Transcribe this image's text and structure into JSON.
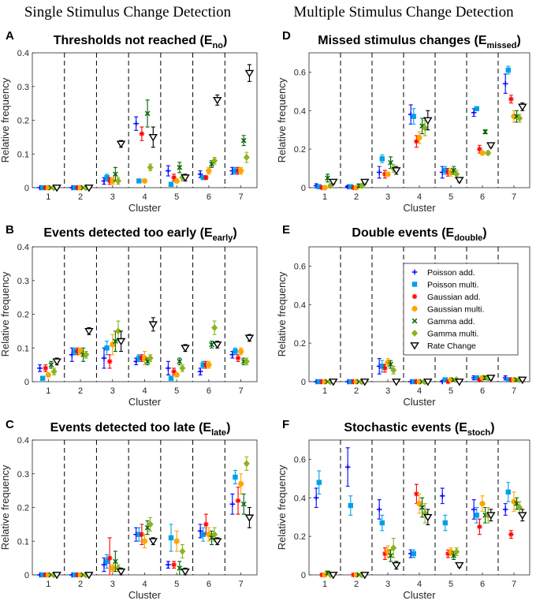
{
  "column_titles": [
    "Single Stimulus Change Detection",
    "Multiple Stimulus Change Detection"
  ],
  "legend": [
    {
      "name": "Poisson add.",
      "color": "#0000ff",
      "marker": "plus"
    },
    {
      "name": "Poisson multi.",
      "color": "#00a0e9",
      "marker": "square"
    },
    {
      "name": "Gaussian add.",
      "color": "#ff0000",
      "marker": "star"
    },
    {
      "name": "Gaussian multi.",
      "color": "#ffa500",
      "marker": "circle"
    },
    {
      "name": "Gamma add.",
      "color": "#006400",
      "marker": "cross"
    },
    {
      "name": "Gamma multi.",
      "color": "#8cb41e",
      "marker": "diamond"
    },
    {
      "name": "Rate Change",
      "color": "#000000",
      "marker": "triangle"
    }
  ],
  "chart_data": [
    {
      "id": "A",
      "type": "scatter",
      "letter": "A",
      "title": "Thresholds not reached (E",
      "title_sub": "no",
      "title_end": ")",
      "xlabel": "Cluster",
      "ylabel": "Relative frequency",
      "categories": [
        "1",
        "2",
        "3",
        "4",
        "5",
        "6",
        "7"
      ],
      "ylim": [
        0,
        0.4
      ],
      "yticks": [
        0,
        0.1,
        0.2,
        0.3,
        0.4
      ],
      "ytick_labels": [
        "0",
        "0.1",
        "0.2",
        "0.3",
        "0.4"
      ],
      "series": [
        {
          "name": "Poisson add.",
          "values": [
            0,
            0,
            0.02,
            0.19,
            0.05,
            0.04,
            0.05
          ],
          "err": [
            0.003,
            0.003,
            0.01,
            0.02,
            0.015,
            0.01,
            0.01
          ]
        },
        {
          "name": "Poisson multi.",
          "values": [
            0,
            0,
            0.03,
            0.02,
            0.01,
            0.03,
            0.05
          ],
          "err": [
            0.003,
            0.003,
            0.01,
            0.005,
            0.005,
            0.005,
            0.01
          ]
        },
        {
          "name": "Gaussian add.",
          "values": [
            0,
            0,
            0.02,
            0.16,
            0.03,
            0.03,
            0.05
          ],
          "err": [
            0.003,
            0.003,
            0.01,
            0.02,
            0.01,
            0.005,
            0.01
          ]
        },
        {
          "name": "Gaussian multi.",
          "values": [
            0,
            0,
            0.02,
            0.02,
            0.02,
            0.05,
            0.05
          ],
          "err": [
            0.003,
            0.003,
            0.01,
            0.005,
            0.005,
            0.01,
            0.01
          ]
        },
        {
          "name": "Gamma add.",
          "values": [
            0,
            0,
            0.04,
            0.22,
            0.06,
            0.07,
            0.14
          ],
          "err": [
            0.003,
            0.003,
            0.02,
            0.04,
            0.015,
            0.01,
            0.015
          ]
        },
        {
          "name": "Gamma multi.",
          "values": [
            0,
            0,
            0.02,
            0.06,
            0.03,
            0.08,
            0.09
          ],
          "err": [
            0.003,
            0.003,
            0.01,
            0.01,
            0.01,
            0.01,
            0.015
          ]
        },
        {
          "name": "Rate Change",
          "values": [
            0,
            0,
            0.13,
            0.15,
            0.03,
            0.26,
            0.34
          ],
          "err": [
            0.003,
            0.003,
            0.01,
            0.03,
            0.01,
            0.015,
            0.025
          ]
        }
      ]
    },
    {
      "id": "D",
      "type": "scatter",
      "letter": "D",
      "title": "Missed stimulus changes (E",
      "title_sub": "missed",
      "title_end": ")",
      "xlabel": "Cluster",
      "ylabel": "Relative frequency",
      "categories": [
        "1",
        "2",
        "3",
        "4",
        "5",
        "6",
        "7"
      ],
      "ylim": [
        0,
        0.7
      ],
      "yticks": [
        0,
        0.2,
        0.4,
        0.6
      ],
      "ytick_labels": [
        "0",
        "0.2",
        "0.4",
        "0.6"
      ],
      "series": [
        {
          "name": "Poisson add.",
          "values": [
            0.01,
            0.005,
            0.08,
            0.38,
            0.08,
            0.39,
            0.54
          ],
          "err": [
            0.01,
            0.005,
            0.03,
            0.05,
            0.03,
            0.02,
            0.05
          ]
        },
        {
          "name": "Poisson multi.",
          "values": [
            0.005,
            0.005,
            0.15,
            0.37,
            0.09,
            0.41,
            0.61
          ],
          "err": [
            0.005,
            0.005,
            0.02,
            0.04,
            0.02,
            0.01,
            0.02
          ]
        },
        {
          "name": "Gaussian add.",
          "values": [
            0,
            0,
            0.07,
            0.24,
            0.08,
            0.2,
            0.46
          ],
          "err": [
            0.003,
            0.003,
            0.02,
            0.03,
            0.02,
            0.02,
            0.02
          ]
        },
        {
          "name": "Gaussian multi.",
          "values": [
            0,
            0,
            0.07,
            0.26,
            0.08,
            0.18,
            0.37
          ],
          "err": [
            0.003,
            0.003,
            0.01,
            0.03,
            0.02,
            0.01,
            0.03
          ]
        },
        {
          "name": "Gamma add.",
          "values": [
            0.05,
            0.01,
            0.13,
            0.32,
            0.09,
            0.29,
            0.37
          ],
          "err": [
            0.02,
            0.01,
            0.03,
            0.04,
            0.02,
            0.01,
            0.03
          ]
        },
        {
          "name": "Gamma multi.",
          "values": [
            0.01,
            0.01,
            0.1,
            0.31,
            0.07,
            0.18,
            0.36
          ],
          "err": [
            0.01,
            0.01,
            0.02,
            0.04,
            0.02,
            0.01,
            0.02
          ]
        },
        {
          "name": "Rate Change",
          "values": [
            0.03,
            0.03,
            0.09,
            0.35,
            0.04,
            0.22,
            0.42
          ],
          "err": [
            0.01,
            0.01,
            0.02,
            0.05,
            0.01,
            0.01,
            0.02
          ]
        }
      ]
    },
    {
      "id": "B",
      "type": "scatter",
      "letter": "B",
      "title": "Events detected too early (E",
      "title_sub": "early",
      "title_end": ")",
      "xlabel": "Cluster",
      "ylabel": "Relative frequency",
      "categories": [
        "1",
        "2",
        "3",
        "4",
        "5",
        "6",
        "7"
      ],
      "ylim": [
        0,
        0.4
      ],
      "yticks": [
        0,
        0.1,
        0.2,
        0.3,
        0.4
      ],
      "ytick_labels": [
        "0",
        "0.1",
        "0.2",
        "0.3",
        "0.4"
      ],
      "series": [
        {
          "name": "Poisson add.",
          "values": [
            0.04,
            0.08,
            0.07,
            0.06,
            0.04,
            0.03,
            0.08
          ],
          "err": [
            0.01,
            0.02,
            0.03,
            0.01,
            0.02,
            0.01,
            0.01
          ]
        },
        {
          "name": "Poisson multi.",
          "values": [
            0.01,
            0.09,
            0.1,
            0.07,
            0.01,
            0.05,
            0.09
          ],
          "err": [
            0.005,
            0.01,
            0.02,
            0.01,
            0.005,
            0.01,
            0.01
          ]
        },
        {
          "name": "Gaussian add.",
          "values": [
            0.04,
            0.09,
            0.06,
            0.07,
            0.03,
            0.05,
            0.07
          ],
          "err": [
            0.01,
            0.01,
            0.02,
            0.01,
            0.01,
            0.01,
            0.01
          ]
        },
        {
          "name": "Gaussian multi.",
          "values": [
            0.02,
            0.09,
            0.11,
            0.07,
            0.02,
            0.05,
            0.09
          ],
          "err": [
            0.005,
            0.01,
            0.03,
            0.02,
            0.005,
            0.01,
            0.01
          ]
        },
        {
          "name": "Gamma add.",
          "values": [
            0.05,
            0.08,
            0.12,
            0.06,
            0.06,
            0.11,
            0.06
          ],
          "err": [
            0.01,
            0.02,
            0.03,
            0.01,
            0.01,
            0.01,
            0.01
          ]
        },
        {
          "name": "Gamma multi.",
          "values": [
            0.03,
            0.08,
            0.15,
            0.07,
            0.04,
            0.16,
            0.06
          ],
          "err": [
            0.01,
            0.01,
            0.03,
            0.01,
            0.01,
            0.02,
            0.01
          ]
        },
        {
          "name": "Rate Change",
          "values": [
            0.06,
            0.15,
            0.12,
            0.17,
            0.1,
            0.11,
            0.13
          ],
          "err": [
            0.01,
            0.01,
            0.03,
            0.02,
            0.01,
            0.01,
            0.01
          ]
        }
      ]
    },
    {
      "id": "E",
      "type": "scatter",
      "letter": "E",
      "title": "Double events (E",
      "title_sub": "double",
      "title_end": ")",
      "xlabel": "Cluster",
      "ylabel": "Relative frequency",
      "categories": [
        "1",
        "2",
        "3",
        "4",
        "5",
        "6",
        "7"
      ],
      "ylim": [
        0,
        0.7
      ],
      "yticks": [
        0,
        0.2,
        0.4,
        0.6
      ],
      "ytick_labels": [
        "0",
        "0.2",
        "0.4",
        "0.6"
      ],
      "series": [
        {
          "name": "Poisson add.",
          "values": [
            0,
            0,
            0.08,
            0,
            0,
            0.02,
            0.02
          ],
          "err": [
            0.003,
            0.003,
            0.04,
            0.003,
            0.005,
            0.01,
            0.01
          ]
        },
        {
          "name": "Poisson multi.",
          "values": [
            0,
            0,
            0.08,
            0,
            0.01,
            0.02,
            0.01
          ],
          "err": [
            0.003,
            0.003,
            0.03,
            0.003,
            0.005,
            0.01,
            0.005
          ]
        },
        {
          "name": "Gaussian add.",
          "values": [
            0,
            0,
            0.07,
            0,
            0,
            0.01,
            0.01
          ],
          "err": [
            0.003,
            0.003,
            0.02,
            0.003,
            0.003,
            0.005,
            0.005
          ]
        },
        {
          "name": "Gaussian multi.",
          "values": [
            0,
            0,
            0.1,
            0,
            0.01,
            0.02,
            0.01
          ],
          "err": [
            0.003,
            0.003,
            0.02,
            0.003,
            0.005,
            0.01,
            0.005
          ]
        },
        {
          "name": "Gamma add.",
          "values": [
            0,
            0,
            0.09,
            0,
            0.01,
            0.02,
            0.01
          ],
          "err": [
            0.003,
            0.003,
            0.02,
            0.003,
            0.005,
            0.01,
            0.005
          ]
        },
        {
          "name": "Gamma multi.",
          "values": [
            0,
            0,
            0.06,
            0,
            0.01,
            0.02,
            0.01
          ],
          "err": [
            0.003,
            0.003,
            0.02,
            0.003,
            0.005,
            0.01,
            0.005
          ]
        },
        {
          "name": "Rate Change",
          "values": [
            0,
            0,
            0,
            0,
            0,
            0.02,
            0.01
          ],
          "err": [
            0.003,
            0.003,
            0.003,
            0.003,
            0.003,
            0.01,
            0.005
          ]
        }
      ]
    },
    {
      "id": "C",
      "type": "scatter",
      "letter": "C",
      "title": "Events detected too late (E",
      "title_sub": "late",
      "title_end": ")",
      "xlabel": "Cluster",
      "ylabel": "Relative frequency",
      "categories": [
        "1",
        "2",
        "3",
        "4",
        "5",
        "6",
        "7"
      ],
      "ylim": [
        0,
        0.4
      ],
      "yticks": [
        0,
        0.1,
        0.2,
        0.3,
        0.4
      ],
      "ytick_labels": [
        "0",
        "0.1",
        "0.2",
        "0.3",
        "0.4"
      ],
      "series": [
        {
          "name": "Poisson add.",
          "values": [
            0,
            0,
            0.03,
            0.12,
            0.03,
            0.13,
            0.21
          ],
          "err": [
            0.003,
            0.003,
            0.02,
            0.02,
            0.01,
            0.02,
            0.03
          ]
        },
        {
          "name": "Poisson multi.",
          "values": [
            0,
            0,
            0.04,
            0.12,
            0.11,
            0.12,
            0.29
          ],
          "err": [
            0.003,
            0.003,
            0.02,
            0.02,
            0.04,
            0.02,
            0.02
          ]
        },
        {
          "name": "Gaussian add.",
          "values": [
            0,
            0,
            0.05,
            0.12,
            0.03,
            0.15,
            0.22
          ],
          "err": [
            0.003,
            0.003,
            0.06,
            0.03,
            0.01,
            0.03,
            0.04
          ]
        },
        {
          "name": "Gaussian multi.",
          "values": [
            0,
            0,
            0.02,
            0.1,
            0.1,
            0.12,
            0.27
          ],
          "err": [
            0.003,
            0.003,
            0.01,
            0.02,
            0.03,
            0.02,
            0.03
          ]
        },
        {
          "name": "Gamma add.",
          "values": [
            0,
            0,
            0.04,
            0.14,
            0.02,
            0.11,
            0.21
          ],
          "err": [
            0.003,
            0.003,
            0.03,
            0.02,
            0.02,
            0.02,
            0.03
          ]
        },
        {
          "name": "Gamma multi.",
          "values": [
            0,
            0,
            0.02,
            0.15,
            0.07,
            0.12,
            0.33
          ],
          "err": [
            0.003,
            0.003,
            0.01,
            0.02,
            0.02,
            0.02,
            0.02
          ]
        },
        {
          "name": "Rate Change",
          "values": [
            0,
            0,
            0.01,
            0.1,
            0.01,
            0.1,
            0.17
          ],
          "err": [
            0.003,
            0.003,
            0.01,
            0.01,
            0.01,
            0.01,
            0.03
          ]
        }
      ]
    },
    {
      "id": "F",
      "type": "scatter",
      "letter": "F",
      "title": "Stochastic events (E",
      "title_sub": "stoch",
      "title_end": ")",
      "xlabel": "Cluster",
      "ylabel": "Relative frequency",
      "categories": [
        "1",
        "2",
        "3",
        "4",
        "5",
        "6",
        "7"
      ],
      "ylim": [
        0,
        0.7
      ],
      "yticks": [
        0,
        0.2,
        0.4,
        0.6
      ],
      "ytick_labels": [
        "0",
        "0.2",
        "0.4",
        "0.6"
      ],
      "series": [
        {
          "name": "Poisson add.",
          "values": [
            0.4,
            0.56,
            0.34,
            0.11,
            0.41,
            0.34,
            0.34
          ],
          "err": [
            0.05,
            0.1,
            0.05,
            0.02,
            0.04,
            0.05,
            0.03
          ]
        },
        {
          "name": "Poisson multi.",
          "values": [
            0.48,
            0.36,
            0.27,
            0.11,
            0.27,
            0.31,
            0.43
          ],
          "err": [
            0.06,
            0.05,
            0.04,
            0.02,
            0.04,
            0.04,
            0.05
          ]
        },
        {
          "name": "Gaussian add.",
          "values": [
            0,
            0,
            0.11,
            0.42,
            0.11,
            0.25,
            0.21
          ],
          "err": [
            0.005,
            0.005,
            0.03,
            0.05,
            0.02,
            0.04,
            0.02
          ]
        },
        {
          "name": "Gaussian multi.",
          "values": [
            0,
            0,
            0.12,
            0.37,
            0.12,
            0.37,
            0.38
          ],
          "err": [
            0.005,
            0.005,
            0.03,
            0.05,
            0.02,
            0.04,
            0.05
          ]
        },
        {
          "name": "Gamma add.",
          "values": [
            0.01,
            0,
            0.1,
            0.35,
            0.1,
            0.31,
            0.37
          ],
          "err": [
            0.01,
            0.005,
            0.03,
            0.05,
            0.02,
            0.04,
            0.03
          ]
        },
        {
          "name": "Gamma multi.",
          "values": [
            0,
            0,
            0.14,
            0.32,
            0.12,
            0.31,
            0.35
          ],
          "err": [
            0.005,
            0.005,
            0.05,
            0.05,
            0.02,
            0.04,
            0.03
          ]
        },
        {
          "name": "Rate Change",
          "values": [
            0,
            0,
            0.05,
            0.3,
            0.05,
            0.31,
            0.31
          ],
          "err": [
            0.005,
            0.005,
            0.02,
            0.04,
            0.01,
            0.03,
            0.03
          ]
        }
      ]
    }
  ]
}
